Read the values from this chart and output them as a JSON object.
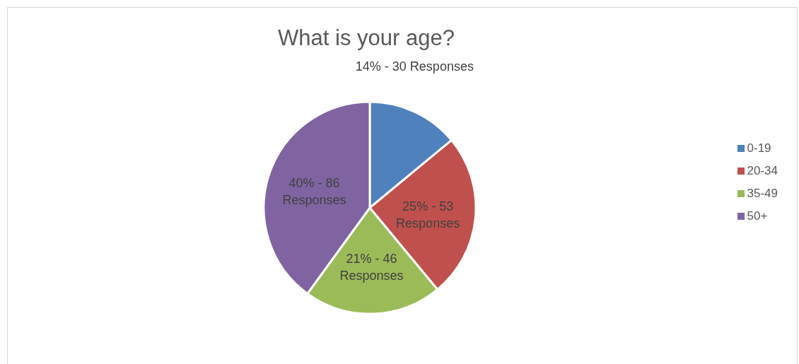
{
  "chart_data": {
    "type": "pie",
    "title": "What is your age?",
    "categories": [
      "0-19",
      "20-34",
      "35-49",
      "50+"
    ],
    "values": [
      14,
      25,
      21,
      40
    ],
    "colors": [
      "#4f81bd",
      "#c0504d",
      "#9bbb59",
      "#8064a2"
    ],
    "value_labels": [
      "14% - 30 Responses",
      "25% - 53 Responses",
      "21% - 46 Responses",
      "40% - 86 Responses"
    ],
    "legend": "right"
  }
}
